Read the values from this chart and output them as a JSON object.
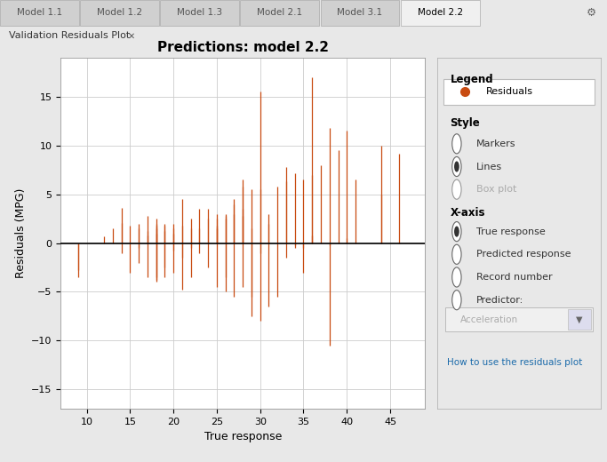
{
  "title": "Predictions: model 2.2",
  "xlabel": "True response",
  "ylabel": "Residuals (MPG)",
  "xlim": [
    7,
    49
  ],
  "ylim": [
    -17,
    19
  ],
  "yticks": [
    -15,
    -10,
    -5,
    0,
    5,
    10,
    15
  ],
  "xticks": [
    10,
    15,
    20,
    25,
    30,
    35,
    40,
    45
  ],
  "residual_color": "#C84B11",
  "zero_line_color": "#000000",
  "background_color": "#e8e8e8",
  "plot_bg_color": "#ffffff",
  "grid_color": "#cccccc",
  "title_fontsize": 11,
  "label_fontsize": 9,
  "tick_fontsize": 8,
  "legend_title": "Legend",
  "legend_label": "Residuals",
  "legend_color": "#C84B11",
  "sidebar_bg": "#e8e8e8",
  "true_response": [
    9,
    9,
    12,
    13,
    14,
    14,
    14,
    15,
    15,
    16,
    16,
    16,
    16,
    17,
    17,
    17,
    17,
    18,
    18,
    18,
    18,
    18,
    18,
    18,
    18,
    19,
    19,
    19,
    19,
    19,
    20,
    20,
    20,
    20,
    20,
    21,
    21,
    21,
    21,
    22,
    22,
    22,
    22,
    23,
    23,
    23,
    24,
    24,
    24,
    25,
    25,
    25,
    25,
    25,
    26,
    26,
    26,
    26,
    26,
    27,
    27,
    27,
    27,
    28,
    28,
    28,
    28,
    28,
    29,
    29,
    29,
    29,
    30,
    30,
    30,
    30,
    31,
    31,
    31,
    32,
    32,
    33,
    33,
    33,
    34,
    34,
    34,
    35,
    35,
    35,
    36,
    36,
    36,
    37,
    38,
    38,
    38,
    39,
    40,
    40,
    41,
    44,
    44,
    46
  ],
  "residuals": [
    -3.5,
    -2.8,
    0.7,
    1.5,
    2.1,
    -1.0,
    3.6,
    1.8,
    -3.0,
    1.5,
    2.0,
    -0.5,
    -2.0,
    0.8,
    1.2,
    -3.5,
    2.8,
    1.0,
    2.5,
    -3.5,
    1.8,
    1.5,
    -3.8,
    2.0,
    -4.0,
    1.2,
    1.8,
    -3.5,
    2.0,
    -2.5,
    1.5,
    1.0,
    -0.8,
    2.0,
    -3.0,
    1.8,
    4.5,
    -1.5,
    -4.8,
    1.5,
    2.5,
    -0.5,
    -3.5,
    3.5,
    1.5,
    -1.0,
    2.5,
    3.5,
    -2.5,
    1.8,
    2.5,
    -4.5,
    3.0,
    1.5,
    3.0,
    2.5,
    -3.5,
    -5.0,
    2.8,
    4.5,
    4.0,
    3.0,
    -5.5,
    6.5,
    5.8,
    2.8,
    -4.5,
    3.5,
    5.5,
    1.5,
    -7.5,
    -5.5,
    -8.0,
    5.5,
    15.5,
    -1.0,
    3.0,
    -6.5,
    2.0,
    -5.5,
    5.8,
    6.3,
    7.8,
    -1.5,
    7.2,
    -0.2,
    -0.5,
    6.5,
    -0.5,
    -3.0,
    7.0,
    0.8,
    17.0,
    8.0,
    -0.2,
    11.8,
    -10.5,
    9.5,
    11.5,
    0.5,
    6.5,
    5.0,
    10.0,
    9.2
  ],
  "tab_bg": "#d0d0d0",
  "tab_active_bg": "#f0f0f0",
  "tab_text_color": "#333333",
  "tabs": [
    "Model 1.1",
    "Model 1.2",
    "Model 1.3",
    "Model 2.1",
    "Model 3.1",
    "Model 2.2"
  ],
  "active_tab": "Model 2.2",
  "subbar_text": "Validation Residuals Plot"
}
